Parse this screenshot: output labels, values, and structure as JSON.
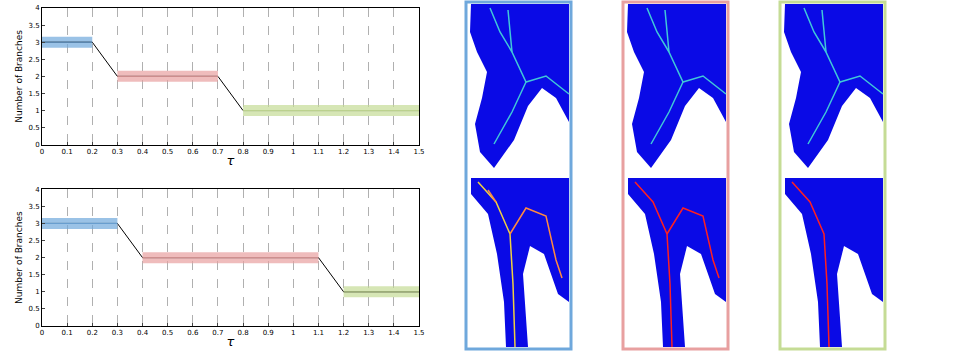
{
  "chart_data": [
    {
      "type": "line",
      "ylabel": "Number of Branches",
      "xlabel": "τ",
      "xlim": [
        0,
        1.5
      ],
      "xticks": [
        0,
        0.1,
        0.2,
        0.3,
        0.4,
        0.5,
        0.6,
        0.7,
        0.8,
        0.9,
        1,
        1.1,
        1.2,
        1.3,
        1.4,
        1.5
      ],
      "ylim": [
        0,
        4
      ],
      "yticks": [
        0,
        0.5,
        1,
        1.5,
        2,
        2.5,
        3,
        3.5,
        4
      ],
      "grid": "x",
      "series": [
        {
          "type": "line",
          "color": "#000000",
          "x": [
            0,
            0.2,
            0.3,
            0.7,
            0.8,
            1.5
          ],
          "values": [
            3,
            3,
            2,
            2,
            1,
            1
          ]
        },
        {
          "type": "band",
          "color": "#6fa8dc",
          "x": [
            0,
            0.2
          ],
          "values": [
            3,
            3
          ]
        },
        {
          "type": "band",
          "color": "#e8a0a0",
          "x": [
            0.3,
            0.7
          ],
          "values": [
            2,
            2
          ]
        },
        {
          "type": "band",
          "color": "#c5dc95",
          "x": [
            0.8,
            1.5
          ],
          "values": [
            1,
            1
          ]
        }
      ]
    },
    {
      "type": "line",
      "ylabel": "Number of Branches",
      "xlabel": "τ",
      "xlim": [
        0,
        1.5
      ],
      "xticks": [
        0,
        0.1,
        0.2,
        0.3,
        0.4,
        0.5,
        0.6,
        0.7,
        0.8,
        0.9,
        1,
        1.1,
        1.2,
        1.3,
        1.4,
        1.5
      ],
      "ylim": [
        0,
        4
      ],
      "yticks": [
        0,
        0.5,
        1,
        1.5,
        2,
        2.5,
        3,
        3.5,
        4
      ],
      "grid": "x",
      "series": [
        {
          "type": "line",
          "color": "#000000",
          "x": [
            0,
            0.3,
            0.4,
            1.1,
            1.2,
            1.5
          ],
          "values": [
            3,
            3,
            2,
            2,
            1,
            1
          ]
        },
        {
          "type": "band",
          "color": "#6fa8dc",
          "x": [
            0,
            0.3
          ],
          "values": [
            3,
            3
          ]
        },
        {
          "type": "band",
          "color": "#e8a0a0",
          "x": [
            0.4,
            1.1
          ],
          "values": [
            2,
            2
          ]
        },
        {
          "type": "band",
          "color": "#c5dc95",
          "x": [
            1.2,
            1.5
          ],
          "values": [
            1,
            1
          ]
        }
      ]
    }
  ]
}
